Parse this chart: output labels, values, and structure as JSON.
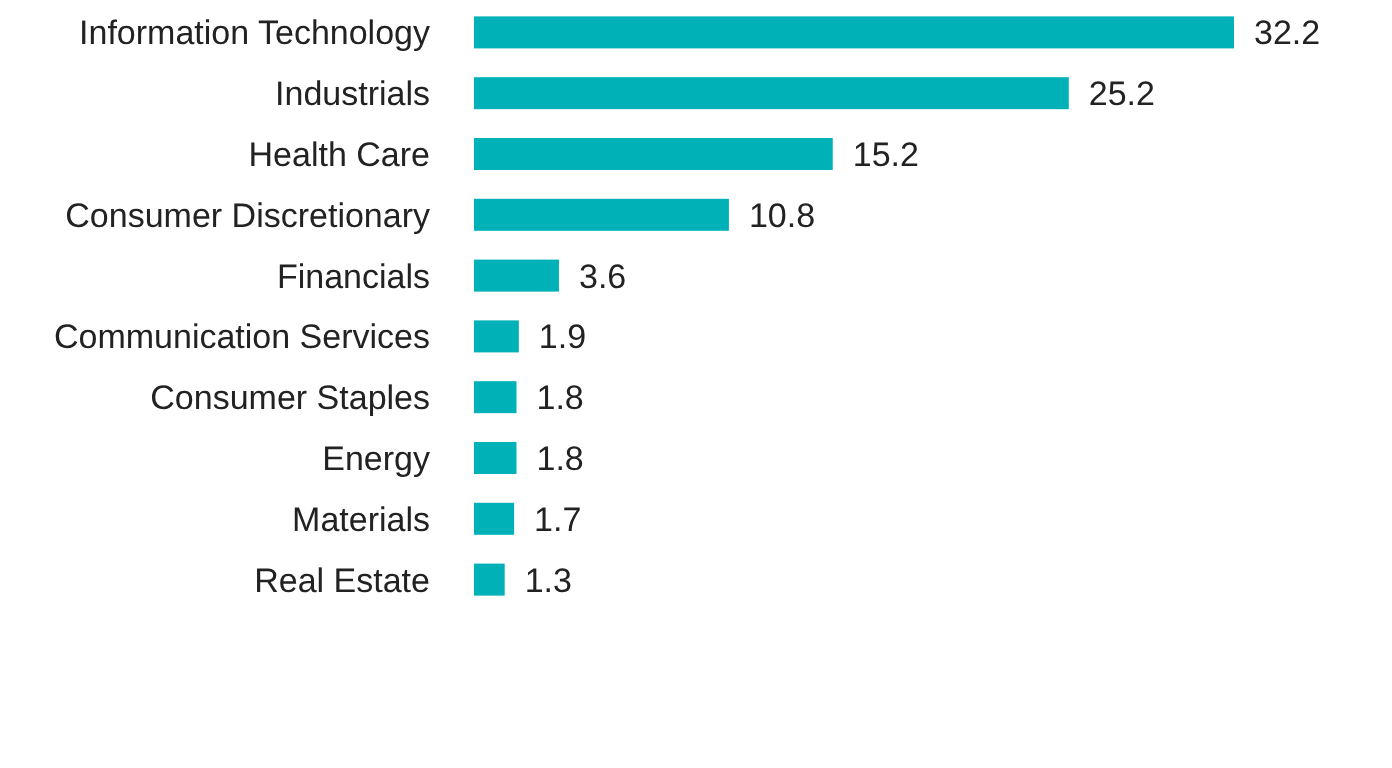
{
  "chart_data": {
    "type": "bar",
    "orientation": "horizontal",
    "data_labels": true,
    "color": "#00b2b8",
    "categories": [
      "Information Technology",
      "Industrials",
      "Health Care",
      "Consumer Discretionary",
      "Financials",
      "Communication Services",
      "Consumer Staples",
      "Energy",
      "Materials",
      "Real Estate"
    ],
    "values": [
      32.2,
      25.2,
      15.2,
      10.8,
      3.6,
      1.9,
      1.8,
      1.8,
      1.7,
      1.3
    ]
  }
}
